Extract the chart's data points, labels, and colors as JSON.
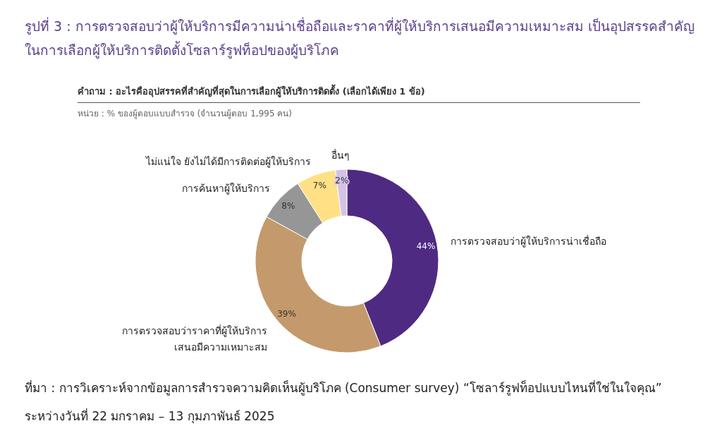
{
  "chart_data": {
    "type": "donut",
    "title": "รูปที่ 3 : การตรวจสอบว่าผู้ให้บริการมีความน่าเชื่อถือและราคาที่ผู้ให้บริการเสนอมีความเหมาะสม เป็นอุปสรรคสำคัญในการเลือกผู้ให้บริการติดตั้งโซลาร์รูฟท็อปของผู้บริโภค",
    "subtitle": "คำถาม : อะไรคืออุปสรรคที่สำคัญที่สุดในการเลือกผู้ให้บริการติดตั้ง (เลือกได้เพียง 1 ข้อ)",
    "categories": [
      "การตรวจสอบว่าผู้ให้บริการน่าเชื่อถือ",
      "การตรวจสอบว่าราคาที่ผู้ให้บริการ\nเสนอมีความเหมาะสม",
      "การค้นหาผู้ให้บริการ",
      "ไม่แน่ใจ ยังไม่ได้มีการติดต่อผู้ให้บริการ",
      "อื่นๆ"
    ],
    "values": [
      44,
      39,
      8,
      7,
      2
    ],
    "colors": [
      "#4f2a82",
      "#c49a6c",
      "#969696",
      "#ffe084",
      "#d3c3ea"
    ],
    "value_labels": [
      "44%",
      "39%",
      "8%",
      "7%",
      "2%"
    ],
    "annotations": [
      "หน่วย : % ของผู้ตอบแบบสำรวจ (จำนวนผู้ตอบ 1,995 คน)",
      "ที่มา : การวิเคราะห์จากข้อมูลการสำรวจความคิดเห็นผู้บริโภค (Consumer survey) “โซลาร์รูฟท็อปแบบไหนที่ใช่ในใจคุณ” ระหว่างวันที่ 22 มกราคม – 13 กุมภาพันธ์ 2025"
    ]
  }
}
